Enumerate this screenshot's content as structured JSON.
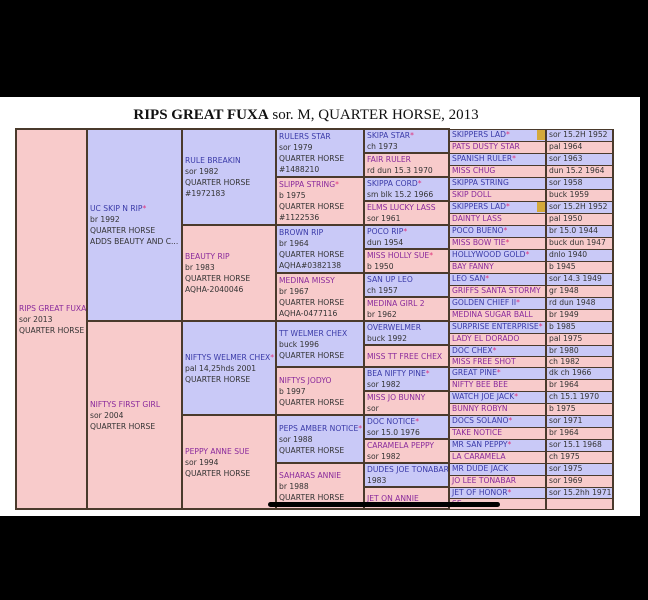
{
  "title": {
    "name": "RIPS GREAT FUXA",
    "rest": " sor. M, QUARTER HORSE, 2013"
  },
  "colors": {
    "male_bg": "#c9c9f7",
    "female_bg": "#f8cbcb",
    "male_name": "#3a3aa8",
    "female_name": "#8a2a9c",
    "star": "#e0307a",
    "border": "#4a3a2c"
  },
  "gen1": [
    {
      "name": "RIPS GREAT FUXA",
      "star": false,
      "sex": "f",
      "lines": [
        "sor 2013",
        "QUARTER HORSE"
      ]
    }
  ],
  "gen2": [
    {
      "name": "UC SKIP N RIP",
      "star": true,
      "sex": "m",
      "lines": [
        "br 1992",
        "QUARTER HORSE",
        "ADDS BEAUTY AND C..."
      ]
    },
    {
      "name": "NIFTYS FIRST GIRL",
      "star": false,
      "sex": "f",
      "lines": [
        "sor 2004",
        "QUARTER HORSE"
      ]
    }
  ],
  "gen3": [
    {
      "name": "RULE BREAKIN",
      "star": false,
      "sex": "m",
      "lines": [
        "sor 1982",
        "QUARTER HORSE",
        "#1972183"
      ]
    },
    {
      "name": "BEAUTY RIP",
      "star": false,
      "sex": "f",
      "lines": [
        "br 1983",
        "QUARTER HORSE",
        "AQHA-2040046"
      ]
    },
    {
      "name": "NIFTYS WELMER CHEX",
      "star": true,
      "sex": "m",
      "lines": [
        "pal 14,25hds 2001",
        "QUARTER HORSE"
      ]
    },
    {
      "name": "PEPPY ANNE SUE",
      "star": false,
      "sex": "f",
      "lines": [
        "sor 1994",
        "QUARTER HORSE"
      ]
    }
  ],
  "gen4": [
    {
      "name": "RULERS STAR",
      "star": false,
      "sex": "m",
      "lines": [
        "sor 1979",
        "QUARTER HORSE",
        "#1488210"
      ]
    },
    {
      "name": "SLIPPA STRING",
      "star": true,
      "sex": "f",
      "lines": [
        "b 1975",
        "QUARTER HORSE",
        "#1122536"
      ]
    },
    {
      "name": "BROWN RIP",
      "star": false,
      "sex": "m",
      "lines": [
        "br 1964",
        "QUARTER HORSE",
        "AQHA#0382138"
      ]
    },
    {
      "name": "MEDINA MISSY",
      "star": false,
      "sex": "f",
      "lines": [
        "br 1967",
        "QUARTER HORSE",
        "AQHA-0477116"
      ]
    },
    {
      "name": "TT WELMER CHEX",
      "star": false,
      "sex": "m",
      "lines": [
        "buck 1996",
        "QUARTER HORSE"
      ]
    },
    {
      "name": "NIFTYS JODYO",
      "star": false,
      "sex": "f",
      "lines": [
        "b 1997",
        "QUARTER HORSE"
      ]
    },
    {
      "name": "PEPS AMBER NOTICE",
      "star": true,
      "sex": "m",
      "lines": [
        "sor 1988",
        "QUARTER HORSE"
      ]
    },
    {
      "name": "SAHARAS ANNIE",
      "star": false,
      "sex": "f",
      "lines": [
        "br 1988",
        "QUARTER HORSE"
      ]
    }
  ],
  "gen5": [
    {
      "name": "SKIPA STAR",
      "star": true,
      "sex": "m",
      "lines": [
        "ch 1973"
      ]
    },
    {
      "name": "FAIR RULER",
      "star": false,
      "sex": "f",
      "lines": [
        "rd dun 15.3 1970"
      ]
    },
    {
      "name": "SKIPPA CORD",
      "star": true,
      "sex": "m",
      "lines": [
        "sm blk 15.2 1966"
      ]
    },
    {
      "name": "ELMS LUCKY LASS",
      "star": false,
      "sex": "f",
      "lines": [
        "sor 1961"
      ]
    },
    {
      "name": "POCO RIP",
      "star": true,
      "sex": "m",
      "lines": [
        "dun 1954"
      ]
    },
    {
      "name": "MISS HOLLY SUE",
      "star": true,
      "sex": "f",
      "lines": [
        "b 1950"
      ]
    },
    {
      "name": "SAN UP LEO",
      "star": false,
      "sex": "m",
      "lines": [
        "ch 1957"
      ]
    },
    {
      "name": "MEDINA GIRL 2",
      "star": false,
      "sex": "f",
      "lines": [
        "br 1962"
      ]
    },
    {
      "name": "OVERWELMER",
      "star": false,
      "sex": "m",
      "lines": [
        "buck 1992"
      ]
    },
    {
      "name": "MISS TT FREE CHEX",
      "star": false,
      "sex": "f",
      "lines": []
    },
    {
      "name": "BEA NIFTY PINE",
      "star": true,
      "sex": "m",
      "lines": [
        "sor 1982"
      ]
    },
    {
      "name": "MISS JO BUNNY",
      "star": false,
      "sex": "f",
      "lines": [
        "sor"
      ]
    },
    {
      "name": "DOC NOTICE",
      "star": true,
      "sex": "m",
      "lines": [
        "sor 15.0 1976"
      ]
    },
    {
      "name": "CARAMELA PEPPY",
      "star": false,
      "sex": "f",
      "lines": [
        "sor 1982"
      ]
    },
    {
      "name": "DUDES JOE TONABAR",
      "star": false,
      "sex": "m",
      "lines": [
        "1983"
      ]
    },
    {
      "name": "JET ON ANNIE",
      "star": false,
      "sex": "f",
      "lines": []
    }
  ],
  "gen6": [
    {
      "name": "SKIPPERS LAD",
      "star": true,
      "sex": "m",
      "info": "sor 15.2H 1952",
      "gold": true
    },
    {
      "name": "PATS DUSTY STAR",
      "star": false,
      "sex": "f",
      "info": "pal 1964"
    },
    {
      "name": "SPANISH RULER",
      "star": true,
      "sex": "m",
      "info": "sor 1963"
    },
    {
      "name": "MISS CHUG",
      "star": false,
      "sex": "f",
      "info": "dun 15.2 1964"
    },
    {
      "name": "SKIPPA STRING",
      "star": false,
      "sex": "m",
      "info": "sor 1958"
    },
    {
      "name": "SKIP DOLL",
      "star": false,
      "sex": "f",
      "info": "buck 1959"
    },
    {
      "name": "SKIPPERS LAD",
      "star": true,
      "sex": "m",
      "info": "sor 15.2H 1952",
      "gold": true
    },
    {
      "name": "DAINTY LASS",
      "star": false,
      "sex": "f",
      "info": "pal 1950"
    },
    {
      "name": "POCO BUENO",
      "star": true,
      "sex": "m",
      "info": "br 15.0 1944"
    },
    {
      "name": "MISS BOW TIE",
      "star": true,
      "sex": "f",
      "info": "buck dun 1947"
    },
    {
      "name": "HOLLYWOOD GOLD",
      "star": true,
      "sex": "m",
      "info": "dnlo 1940"
    },
    {
      "name": "BAY FANNY",
      "star": false,
      "sex": "f",
      "info": "b 1945"
    },
    {
      "name": "LEO SAN",
      "star": true,
      "sex": "m",
      "info": "sor 14.3 1949"
    },
    {
      "name": "GRIFFS SANTA STORMY",
      "star": false,
      "sex": "f",
      "info": "gr 1948"
    },
    {
      "name": "GOLDEN CHIEF II",
      "star": true,
      "sex": "m",
      "info": "rd dun 1948"
    },
    {
      "name": "MEDINA SUGAR BALL",
      "star": false,
      "sex": "f",
      "info": "br 1949"
    },
    {
      "name": "SURPRISE ENTERPRISE",
      "star": true,
      "sex": "m",
      "info": "b 1985"
    },
    {
      "name": "LADY EL DORADO",
      "star": false,
      "sex": "f",
      "info": "pal 1975"
    },
    {
      "name": "DOC CHEX",
      "star": true,
      "sex": "m",
      "info": "br 1980"
    },
    {
      "name": "MISS FREE SHOT",
      "star": false,
      "sex": "f",
      "info": "ch 1982"
    },
    {
      "name": "GREAT PINE",
      "star": true,
      "sex": "m",
      "info": "dk ch 1966"
    },
    {
      "name": "NIFTY BEE BEE",
      "star": false,
      "sex": "f",
      "info": "br 1964"
    },
    {
      "name": "WATCH JOE JACK",
      "star": true,
      "sex": "m",
      "info": "ch 15.1 1970"
    },
    {
      "name": "BUNNY ROBYN",
      "star": false,
      "sex": "f",
      "info": "b 1975"
    },
    {
      "name": "DOCS SOLANO",
      "star": true,
      "sex": "m",
      "info": "sor 1971"
    },
    {
      "name": "TAKE NOTICE",
      "star": false,
      "sex": "f",
      "info": "br 1964"
    },
    {
      "name": "MR SAN PEPPY",
      "star": true,
      "sex": "m",
      "info": "sor 15.1 1968"
    },
    {
      "name": "LA CARAMELA",
      "star": false,
      "sex": "f",
      "info": "ch 1975"
    },
    {
      "name": "MR DUDE JACK",
      "star": false,
      "sex": "m",
      "info": "sor 1975"
    },
    {
      "name": "JO LEE TONABAR",
      "star": false,
      "sex": "f",
      "info": "sor 1969"
    },
    {
      "name": "JET OF HONOR",
      "star": true,
      "sex": "m",
      "info": "sor 15.2hh 1971"
    },
    {
      "name": "SE",
      "star": false,
      "sex": "f",
      "info": ""
    }
  ]
}
